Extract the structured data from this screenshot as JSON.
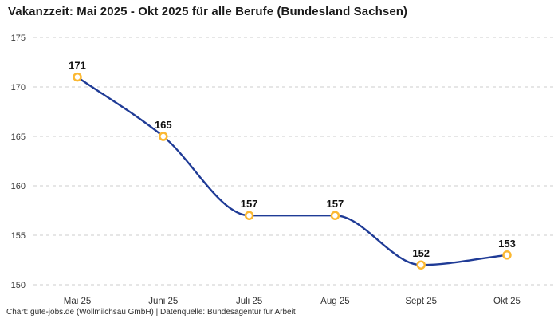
{
  "title": "Vakanzzeit: Mai 2025 - Okt 2025 für alle Berufe (Bundesland Sachsen)",
  "footer": "Chart: gute-jobs.de (Wollmilchsau GmbH) | Datenquelle: Bundesagentur für Arbeit",
  "chart_data": {
    "type": "line",
    "title": "Vakanzzeit: Mai 2025 - Okt 2025 für alle Berufe (Bundesland Sachsen)",
    "categories": [
      "Mai 25",
      "Juni 25",
      "Juli 25",
      "Aug 25",
      "Sept 25",
      "Okt 25"
    ],
    "values": [
      171,
      165,
      157,
      157,
      152,
      153
    ],
    "xlabel": "",
    "ylabel": "",
    "ylim": [
      150,
      175
    ],
    "yticks": [
      150,
      155,
      160,
      165,
      170,
      175
    ],
    "grid": "horizontal-dashed",
    "legend": "none",
    "curve": "monotone",
    "colors": {
      "line": "#1f3b96",
      "marker_ring": "#fbb832",
      "marker_fill": "#ffffff",
      "gridline": "#cdcdcd",
      "tick_text": "#3c3c3c"
    }
  }
}
